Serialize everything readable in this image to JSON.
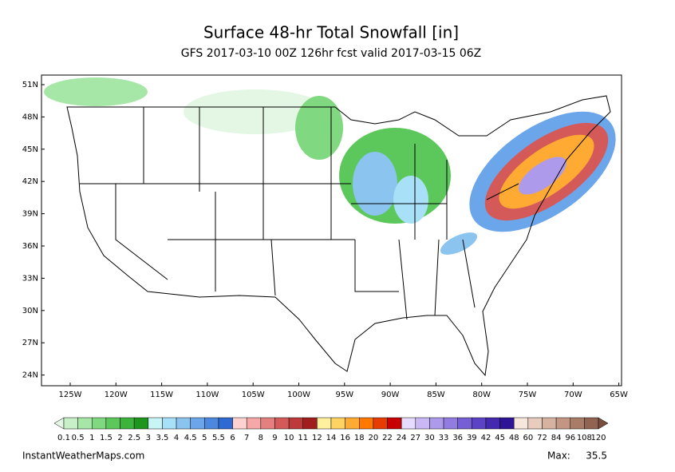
{
  "header": {
    "title": "Surface 48-hr Total Snowfall [in]",
    "subtitle": "GFS 2017-03-10 00Z 126hr fcst valid 2017-03-15 06Z"
  },
  "map": {
    "lat_labels": [
      "51N",
      "48N",
      "45N",
      "42N",
      "39N",
      "36N",
      "33N",
      "30N",
      "27N",
      "24N"
    ],
    "lon_labels": [
      "125W",
      "120W",
      "115W",
      "110W",
      "105W",
      "100W",
      "95W",
      "90W",
      "85W",
      "80W",
      "75W",
      "70W",
      "65W"
    ]
  },
  "colorbar": {
    "labels": [
      "0.1",
      "0.5",
      "1",
      "1.5",
      "2",
      "2.5",
      "3",
      "3.5",
      "4",
      "4.5",
      "5",
      "5.5",
      "6",
      "7",
      "8",
      "9",
      "10",
      "11",
      "12",
      "14",
      "16",
      "18",
      "20",
      "22",
      "24",
      "27",
      "30",
      "33",
      "36",
      "39",
      "42",
      "45",
      "48",
      "60",
      "72",
      "84",
      "96",
      "108",
      "120"
    ],
    "colors": [
      "#e4f7e4",
      "#c8f0c8",
      "#a6e6a6",
      "#80d880",
      "#5cc85c",
      "#3cb43c",
      "#1e961e",
      "#c8f5f5",
      "#a8e0f8",
      "#8cc4f0",
      "#6ca6ea",
      "#4c88de",
      "#2e6ad2",
      "#ffd2d2",
      "#f4a8a8",
      "#e48080",
      "#d45a5a",
      "#bc3a3a",
      "#a01e1e",
      "#fff0a0",
      "#ffd264",
      "#ffaa32",
      "#ff7800",
      "#e63c00",
      "#c80000",
      "#e6dcff",
      "#cab8f5",
      "#ae9aeb",
      "#927ce0",
      "#765ed4",
      "#5c42c4",
      "#4428b0",
      "#2e1496",
      "#f6e6dc",
      "#e8ccbe",
      "#d6b2a0",
      "#c29682",
      "#a87c66",
      "#906450",
      "#7a4e3c"
    ]
  },
  "footer": {
    "site": "InstantWeatherMaps.com",
    "max_label": "Max:",
    "max_value": 35.5
  }
}
